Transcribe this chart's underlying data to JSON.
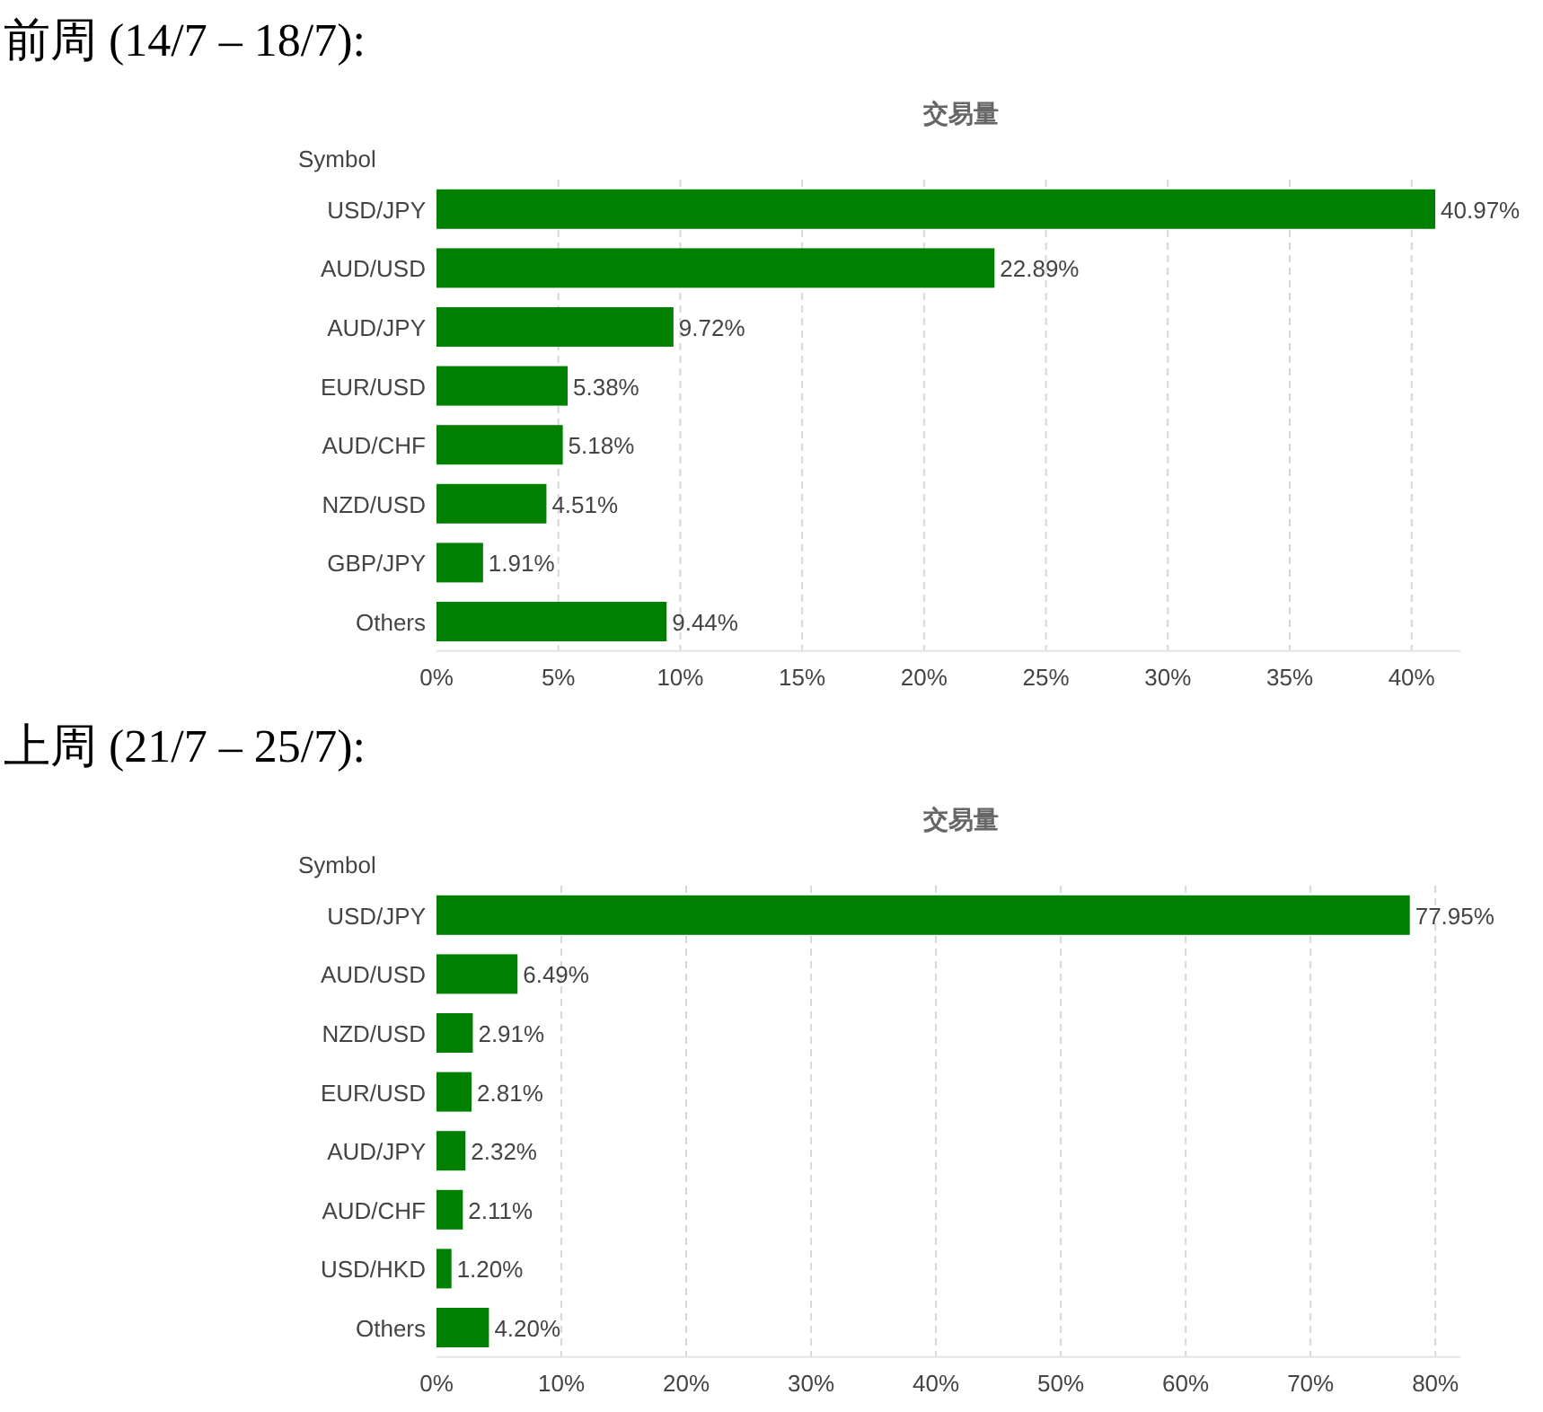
{
  "chart_data": [
    {
      "type": "bar",
      "orientation": "horizontal",
      "title": "前周 (14/7 – 18/7):",
      "subtitle": "交易量",
      "ylabel": "Symbol",
      "categories": [
        "USD/JPY",
        "AUD/USD",
        "AUD/JPY",
        "EUR/USD",
        "AUD/CHF",
        "NZD/USD",
        "GBP/JPY",
        "Others"
      ],
      "values": [
        40.97,
        22.89,
        9.72,
        5.38,
        5.18,
        4.51,
        1.91,
        9.44
      ],
      "value_labels": [
        "40.97%",
        "22.89%",
        "9.72%",
        "5.38%",
        "5.18%",
        "4.51%",
        "1.91%",
        "9.44%"
      ],
      "color": "#008000",
      "xlim": [
        0,
        42
      ],
      "xticks": [
        {
          "value": 0,
          "label": "0%"
        },
        {
          "value": 5,
          "label": "5%"
        },
        {
          "value": 10,
          "label": "10%"
        },
        {
          "value": 15,
          "label": "15%"
        },
        {
          "value": 20,
          "label": "20%"
        },
        {
          "value": 25,
          "label": "25%"
        },
        {
          "value": 30,
          "label": "30%"
        },
        {
          "value": 35,
          "label": "35%"
        },
        {
          "value": 40,
          "label": "40%"
        }
      ],
      "grid": "x"
    },
    {
      "type": "bar",
      "orientation": "horizontal",
      "title": "上周 (21/7 – 25/7):",
      "subtitle": "交易量",
      "ylabel": "Symbol",
      "categories": [
        "USD/JPY",
        "AUD/USD",
        "NZD/USD",
        "EUR/USD",
        "AUD/JPY",
        "AUD/CHF",
        "USD/HKD",
        "Others"
      ],
      "values": [
        77.95,
        6.49,
        2.91,
        2.81,
        2.32,
        2.11,
        1.2,
        4.2
      ],
      "value_labels": [
        "77.95%",
        "6.49%",
        "2.91%",
        "2.81%",
        "2.32%",
        "2.11%",
        "1.20%",
        "4.20%"
      ],
      "color": "#008000",
      "xlim": [
        0,
        82
      ],
      "xticks": [
        {
          "value": 0,
          "label": "0%"
        },
        {
          "value": 10,
          "label": "10%"
        },
        {
          "value": 20,
          "label": "20%"
        },
        {
          "value": 30,
          "label": "30%"
        },
        {
          "value": 40,
          "label": "40%"
        },
        {
          "value": 50,
          "label": "50%"
        },
        {
          "value": 60,
          "label": "60%"
        },
        {
          "value": 70,
          "label": "70%"
        },
        {
          "value": 80,
          "label": "80%"
        }
      ],
      "grid": "x"
    }
  ]
}
